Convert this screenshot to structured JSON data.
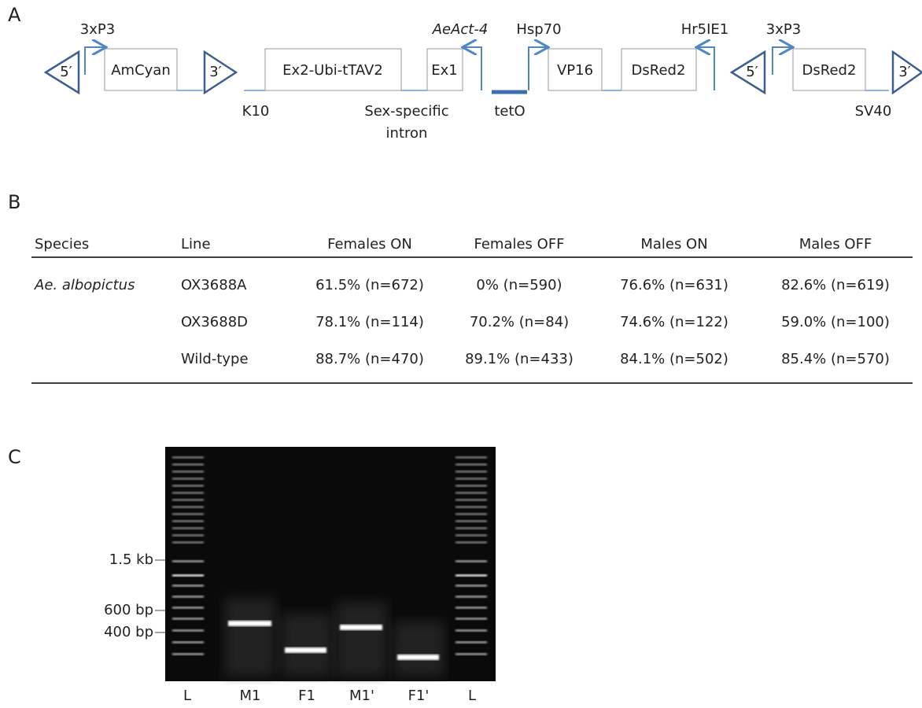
{
  "diagram": {
    "panel_label": "A",
    "boxes": [
      "AmCyan",
      "Ex2-Ubi-tTAV2",
      "Ex1",
      "VP16",
      "DsRed2",
      "DsRed2"
    ],
    "promoters": [
      "3xP3",
      "AeAct-4",
      "Hsp70",
      "Hr5IE1",
      "3xP3"
    ],
    "ends": [
      "5′",
      "3′",
      "5′",
      "3′"
    ],
    "features": [
      "K10",
      "Sex-specific",
      "intron",
      "tetO",
      "SV40"
    ]
  },
  "table": {
    "panel_label": "B",
    "header": [
      "Species",
      "Line",
      "Females ON",
      "Females OFF",
      "Males ON",
      "Males OFF"
    ],
    "species": "Ae. albopictus",
    "rows": [
      [
        "OX3688A",
        "61.5%  (n=672)",
        "0%  (n=590)",
        "76.6%  (n=631)",
        "82.6%  (n=619)"
      ],
      [
        "OX3688D",
        "78.1%  (n=114)",
        "70.2%  (n=84)",
        "74.6%  (n=122)",
        "59.0%  (n=100)"
      ],
      [
        "Wild-type",
        "88.7%  (n=470)",
        "89.1%  (n=433)",
        "84.1%  (n=502)",
        "85.4%  (n=570)"
      ]
    ]
  },
  "gel": {
    "panel_label": "C",
    "size_markers": [
      "1.5 kb",
      "600 bp",
      "400 bp"
    ],
    "lanes": [
      "L",
      "M1",
      "F1",
      "M1'",
      "F1'",
      "L"
    ]
  }
}
